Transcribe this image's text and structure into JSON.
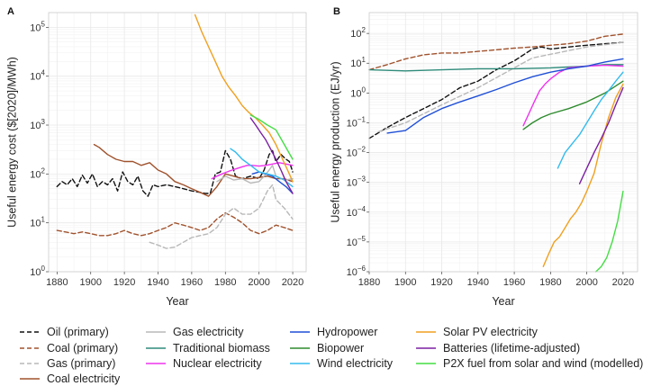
{
  "legend": [
    {
      "label": "Oil (primary)",
      "color": "#111111",
      "dash": "dashed"
    },
    {
      "label": "Coal (primary)",
      "color": "#a0522d",
      "dash": "dashed"
    },
    {
      "label": "Gas (primary)",
      "color": "#b8b8b8",
      "dash": "dashed"
    },
    {
      "label": "Coal electricity",
      "color": "#a0522d",
      "dash": "solid"
    },
    {
      "label": "Gas electricity",
      "color": "#b8b8b8",
      "dash": "solid"
    },
    {
      "label": "Traditional biomass",
      "color": "#2e8b7a",
      "dash": "solid"
    },
    {
      "label": "Nuclear electricity",
      "color": "#ee33ee",
      "dash": "solid"
    },
    {
      "label": "Hydropower",
      "color": "#1f4fd6",
      "dash": "solid"
    },
    {
      "label": "Biopower",
      "color": "#2e8b2e",
      "dash": "solid"
    },
    {
      "label": "Wind electricity",
      "color": "#33bbee",
      "dash": "solid"
    },
    {
      "label": "Solar PV electricity",
      "color": "#f0a020",
      "dash": "solid"
    },
    {
      "label": "Batteries (lifetime-adjusted)",
      "color": "#7b1fa2",
      "dash": "solid"
    },
    {
      "label": "P2X fuel from solar and wind (modelled)",
      "color": "#44dd44",
      "dash": "solid"
    }
  ],
  "chart_data": [
    {
      "panel": "A",
      "type": "line",
      "xlabel": "Year",
      "ylabel": "Useful energy cost ($[2020]/MWh)",
      "yscale": "log",
      "xlim": [
        1875,
        2028
      ],
      "ylim": [
        1,
        200000
      ],
      "xticks": [
        1880,
        1900,
        1920,
        1940,
        1960,
        1980,
        2000,
        2020
      ],
      "yticks": [
        {
          "v": 1,
          "b": "10",
          "e": "0"
        },
        {
          "v": 10,
          "b": "10",
          "e": "1"
        },
        {
          "v": 100,
          "b": "10",
          "e": "2"
        },
        {
          "v": 1000,
          "b": "10",
          "e": "3"
        },
        {
          "v": 10000,
          "b": "10",
          "e": "4"
        },
        {
          "v": 100000,
          "b": "10",
          "e": "5"
        }
      ],
      "grid": true,
      "series": [
        {
          "name": "Oil (primary)",
          "x": [
            1880,
            1883,
            1886,
            1889,
            1892,
            1895,
            1898,
            1901,
            1904,
            1907,
            1910,
            1913,
            1916,
            1919,
            1922,
            1925,
            1928,
            1931,
            1934,
            1937,
            1940,
            1945,
            1950,
            1955,
            1960,
            1965,
            1968,
            1971,
            1974,
            1977,
            1980,
            1983,
            1986,
            1990,
            1995,
            2000,
            2003,
            2006,
            2008,
            2010,
            2013,
            2016,
            2018,
            2020
          ],
          "y": [
            55,
            70,
            60,
            80,
            55,
            95,
            65,
            100,
            55,
            70,
            60,
            80,
            45,
            110,
            70,
            60,
            90,
            45,
            35,
            60,
            55,
            60,
            55,
            50,
            45,
            42,
            40,
            40,
            100,
            110,
            300,
            200,
            90,
            80,
            90,
            80,
            120,
            250,
            300,
            180,
            250,
            200,
            180,
            110
          ]
        },
        {
          "name": "Coal (primary)",
          "x": [
            1880,
            1885,
            1890,
            1895,
            1900,
            1905,
            1910,
            1915,
            1920,
            1925,
            1930,
            1935,
            1940,
            1945,
            1950,
            1955,
            1960,
            1965,
            1970,
            1975,
            1980,
            1985,
            1990,
            1995,
            2000,
            2005,
            2010,
            2015,
            2020
          ],
          "y": [
            7,
            6.5,
            6,
            6.5,
            6,
            5.5,
            5.5,
            6,
            7,
            6,
            5.5,
            6,
            7,
            8,
            10,
            9,
            8,
            7,
            8,
            12,
            16,
            13,
            10,
            7,
            6,
            7,
            9,
            8,
            7
          ]
        },
        {
          "name": "Gas (primary)",
          "x": [
            1935,
            1940,
            1945,
            1950,
            1955,
            1960,
            1965,
            1970,
            1975,
            1980,
            1985,
            1990,
            1995,
            2000,
            2005,
            2008,
            2010,
            2015,
            2020
          ],
          "y": [
            4,
            3.5,
            3,
            3.2,
            4,
            5,
            5.5,
            6,
            8,
            15,
            20,
            15,
            15,
            20,
            45,
            60,
            30,
            20,
            12
          ]
        },
        {
          "name": "Coal electricity",
          "x": [
            1902,
            1905,
            1910,
            1915,
            1920,
            1925,
            1930,
            1935,
            1940,
            1945,
            1950,
            1955,
            1960,
            1965,
            1970,
            1975,
            1980,
            1985,
            1990,
            1995,
            2000,
            2005,
            2010,
            2015,
            2020
          ],
          "y": [
            400,
            350,
            250,
            200,
            180,
            180,
            150,
            170,
            120,
            100,
            70,
            60,
            50,
            42,
            35,
            55,
            100,
            90,
            80,
            80,
            85,
            90,
            80,
            80,
            70
          ]
        },
        {
          "name": "Gas electricity",
          "x": [
            1975,
            1980,
            1985,
            1990,
            1995,
            2000,
            2003,
            2006,
            2008,
            2010,
            2013,
            2016,
            2020
          ],
          "y": [
            70,
            90,
            75,
            80,
            65,
            70,
            90,
            120,
            150,
            90,
            80,
            75,
            80
          ]
        },
        {
          "name": "Nuclear electricity",
          "x": [
            1972,
            1975,
            1978,
            1981,
            1984,
            1987,
            1990,
            1993,
            1996,
            2000,
            2004,
            2008,
            2012,
            2016,
            2020
          ],
          "y": [
            80,
            90,
            100,
            110,
            120,
            130,
            140,
            150,
            150,
            145,
            150,
            160,
            170,
            160,
            150
          ]
        },
        {
          "name": "Hydropower",
          "x": [
            1996,
            2000,
            2004,
            2008,
            2012,
            2016,
            2020
          ],
          "y": [
            100,
            110,
            100,
            90,
            70,
            55,
            40
          ]
        },
        {
          "name": "Wind electricity",
          "x": [
            1983,
            1986,
            1990,
            1995,
            2000,
            2005,
            2010,
            2015,
            2020
          ],
          "y": [
            330,
            280,
            200,
            150,
            110,
            100,
            90,
            75,
            55
          ]
        },
        {
          "name": "Solar PV electricity",
          "x": [
            1962,
            1966,
            1970,
            1974,
            1978,
            1982,
            1986,
            1990,
            1994,
            1998,
            2002,
            2006,
            2010,
            2014,
            2018,
            2020
          ],
          "y": [
            180000,
            80000,
            40000,
            20000,
            10000,
            6000,
            4000,
            2500,
            1800,
            1400,
            1000,
            700,
            400,
            200,
            100,
            70
          ]
        },
        {
          "name": "Batteries (lifetime-adjusted)",
          "x": [
            1995,
            1998,
            2001,
            2004,
            2007,
            2010,
            2013,
            2016,
            2020
          ],
          "y": [
            1400,
            1000,
            700,
            500,
            320,
            200,
            120,
            70,
            40
          ]
        },
        {
          "name": "P2X fuel from solar and wind (modelled)",
          "x": [
            1995,
            2000,
            2005,
            2010,
            2015,
            2020
          ],
          "y": [
            1600,
            1300,
            1000,
            800,
            400,
            200
          ]
        }
      ]
    },
    {
      "panel": "B",
      "type": "line",
      "xlabel": "Year",
      "ylabel": "Useful energy production (EJ/yr)",
      "yscale": "log",
      "xlim": [
        1880,
        2028
      ],
      "ylim": [
        1e-06,
        500
      ],
      "xticks": [
        1880,
        1900,
        1920,
        1940,
        1960,
        1980,
        2000,
        2020
      ],
      "yticks": [
        {
          "v": 1e-06,
          "b": "10",
          "e": "−6"
        },
        {
          "v": 1e-05,
          "b": "10",
          "e": "−5"
        },
        {
          "v": 0.0001,
          "b": "10",
          "e": "−4"
        },
        {
          "v": 0.001,
          "b": "10",
          "e": "−3"
        },
        {
          "v": 0.01,
          "b": "10",
          "e": "−2"
        },
        {
          "v": 0.1,
          "b": "10",
          "e": "−1"
        },
        {
          "v": 1,
          "b": "10",
          "e": "0"
        },
        {
          "v": 10,
          "b": "10",
          "e": "1"
        },
        {
          "v": 100,
          "b": "10",
          "e": "2"
        }
      ],
      "grid": true,
      "series": [
        {
          "name": "Oil (primary)",
          "x": [
            1880,
            1890,
            1900,
            1910,
            1920,
            1930,
            1940,
            1950,
            1960,
            1970,
            1975,
            1980,
            1990,
            2000,
            2010,
            2020
          ],
          "y": [
            0.03,
            0.07,
            0.15,
            0.3,
            0.6,
            1.5,
            2.5,
            6,
            12,
            30,
            35,
            30,
            35,
            40,
            45,
            50
          ]
        },
        {
          "name": "Coal (primary)",
          "x": [
            1880,
            1890,
            1900,
            1910,
            1920,
            1930,
            1940,
            1950,
            1960,
            1970,
            1980,
            1990,
            2000,
            2010,
            2020
          ],
          "y": [
            6,
            9,
            14,
            19,
            22,
            22,
            25,
            28,
            32,
            35,
            40,
            45,
            55,
            80,
            95
          ]
        },
        {
          "name": "Gas (primary)",
          "x": [
            1885,
            1900,
            1920,
            1940,
            1960,
            1970,
            1980,
            2000,
            2020
          ],
          "y": [
            0.05,
            0.1,
            0.4,
            1.5,
            7,
            15,
            20,
            35,
            50
          ]
        },
        {
          "name": "Traditional biomass",
          "x": [
            1880,
            1900,
            1920,
            1940,
            1960,
            1980,
            2000,
            2010,
            2020
          ],
          "y": [
            6,
            5.5,
            6,
            6.5,
            6.5,
            7,
            8,
            9,
            9
          ]
        },
        {
          "name": "Nuclear electricity",
          "x": [
            1965,
            1968,
            1971,
            1974,
            1977,
            1980,
            1985,
            1990,
            2000,
            2010,
            2020
          ],
          "y": [
            0.08,
            0.2,
            0.5,
            1.2,
            2,
            3,
            5,
            7,
            8,
            8.5,
            8
          ]
        },
        {
          "name": "Hydropower",
          "x": [
            1890,
            1900,
            1910,
            1920,
            1930,
            1940,
            1950,
            1960,
            1970,
            1980,
            1990,
            2000,
            2010,
            2020
          ],
          "y": [
            0.045,
            0.055,
            0.15,
            0.3,
            0.5,
            0.8,
            1.3,
            2.2,
            3.5,
            5,
            6.5,
            8,
            11,
            14
          ]
        },
        {
          "name": "Biopower",
          "x": [
            1965,
            1970,
            1975,
            1980,
            1990,
            2000,
            2010,
            2020
          ],
          "y": [
            0.06,
            0.1,
            0.15,
            0.2,
            0.3,
            0.5,
            1,
            2.5
          ]
        },
        {
          "name": "Wind electricity",
          "x": [
            1984,
            1988,
            1992,
            1996,
            2000,
            2004,
            2008,
            2012,
            2016,
            2020
          ],
          "y": [
            0.003,
            0.01,
            0.02,
            0.04,
            0.1,
            0.25,
            0.6,
            1.2,
            2.5,
            5
          ]
        },
        {
          "name": "Solar PV electricity",
          "x": [
            1976,
            1979,
            1982,
            1985,
            1988,
            1991,
            1994,
            1997,
            2000,
            2004,
            2008,
            2012,
            2016,
            2020
          ],
          "y": [
            1.5e-06,
            4e-06,
            1e-05,
            1.5e-05,
            3e-05,
            6e-05,
            0.0001,
            0.0002,
            0.0005,
            0.002,
            0.02,
            0.15,
            0.7,
            2
          ]
        },
        {
          "name": "Batteries (lifetime-adjusted)",
          "x": [
            1996,
            2000,
            2004,
            2008,
            2012,
            2016,
            2020
          ],
          "y": [
            0.0009,
            0.003,
            0.01,
            0.03,
            0.1,
            0.4,
            1.5
          ]
        },
        {
          "name": "P2X fuel from solar and wind (modelled)",
          "x": [
            2005,
            2008,
            2011,
            2014,
            2017,
            2020
          ],
          "y": [
            1e-06,
            1.5e-06,
            3e-06,
            1e-05,
            5e-05,
            0.0005
          ]
        }
      ]
    }
  ]
}
